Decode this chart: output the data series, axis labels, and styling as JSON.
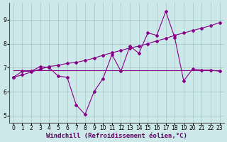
{
  "xlabel": "Windchill (Refroidissement éolien,°C)",
  "background_color": "#cce8e8",
  "line_color": "#880088",
  "grid_color": "#aacccc",
  "xlim": [
    -0.5,
    23.5
  ],
  "ylim": [
    4.7,
    9.7
  ],
  "xticks": [
    0,
    1,
    2,
    3,
    4,
    5,
    6,
    7,
    8,
    9,
    10,
    11,
    12,
    13,
    14,
    15,
    16,
    17,
    18,
    19,
    20,
    21,
    22,
    23
  ],
  "yticks": [
    5,
    6,
    7,
    8,
    9
  ],
  "line1_x": [
    0,
    1,
    2,
    3,
    4,
    5,
    6,
    7,
    8,
    9,
    10,
    11,
    12,
    13,
    14,
    15,
    16,
    17,
    18,
    19,
    20,
    21,
    22,
    23
  ],
  "line1_y": [
    6.6,
    6.85,
    6.85,
    7.05,
    7.0,
    6.65,
    6.6,
    5.45,
    5.05,
    6.0,
    6.55,
    7.55,
    6.85,
    7.9,
    7.6,
    8.45,
    8.35,
    9.35,
    8.25,
    6.45,
    6.95,
    6.9,
    6.9,
    6.85
  ],
  "line2_x": [
    0,
    10,
    11,
    23
  ],
  "line2_y": [
    6.9,
    6.9,
    6.9,
    6.9
  ],
  "line3_x": [
    0,
    1,
    2,
    3,
    4,
    5,
    6,
    7,
    8,
    9,
    10,
    11,
    12,
    13,
    14,
    15,
    16,
    17,
    18,
    19,
    20,
    21,
    22,
    23
  ],
  "line3_y": [
    6.6,
    6.7,
    6.82,
    6.94,
    7.05,
    7.1,
    7.18,
    7.22,
    7.3,
    7.4,
    7.52,
    7.62,
    7.72,
    7.82,
    7.9,
    8.0,
    8.12,
    8.22,
    8.35,
    8.45,
    8.55,
    8.65,
    8.75,
    8.88
  ],
  "fontsize_tick": 5.5,
  "fontsize_label": 6.5,
  "marker": "D",
  "markersize": 2.0,
  "linewidth": 0.8
}
